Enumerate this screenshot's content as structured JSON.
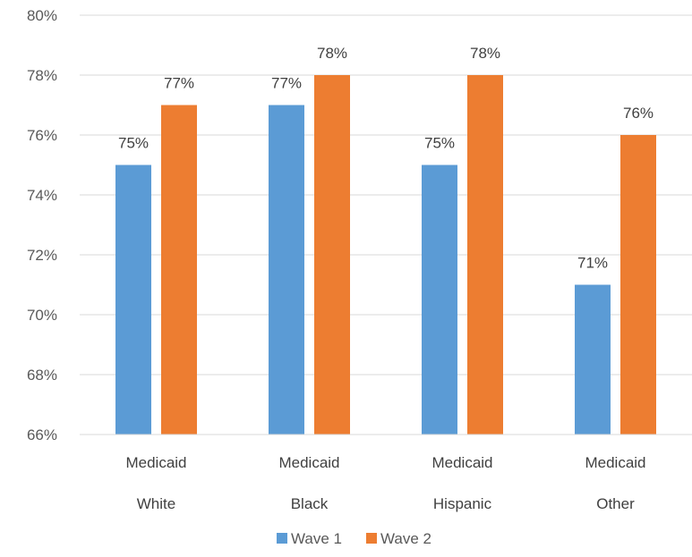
{
  "chart_data": {
    "type": "bar",
    "categories": [
      [
        "Medicaid",
        "White"
      ],
      [
        "Medicaid",
        "Black"
      ],
      [
        "Medicaid",
        "Hispanic"
      ],
      [
        "Medicaid",
        "Other"
      ]
    ],
    "series": [
      {
        "name": "Wave 1",
        "color": "#5B9BD5",
        "values": [
          75,
          77,
          75,
          71
        ],
        "labels": [
          "75%",
          "77%",
          "75%",
          "71%"
        ]
      },
      {
        "name": "Wave 2",
        "color": "#ED7D31",
        "values": [
          77,
          78,
          78,
          76
        ],
        "labels": [
          "77%",
          "78%",
          "78%",
          "76%"
        ]
      }
    ],
    "ylim": [
      66,
      80
    ],
    "ytick_step": 2,
    "ytick_labels": [
      "66%",
      "68%",
      "70%",
      "72%",
      "74%",
      "76%",
      "78%",
      "80%"
    ],
    "grid": true,
    "legend": "bottom"
  }
}
